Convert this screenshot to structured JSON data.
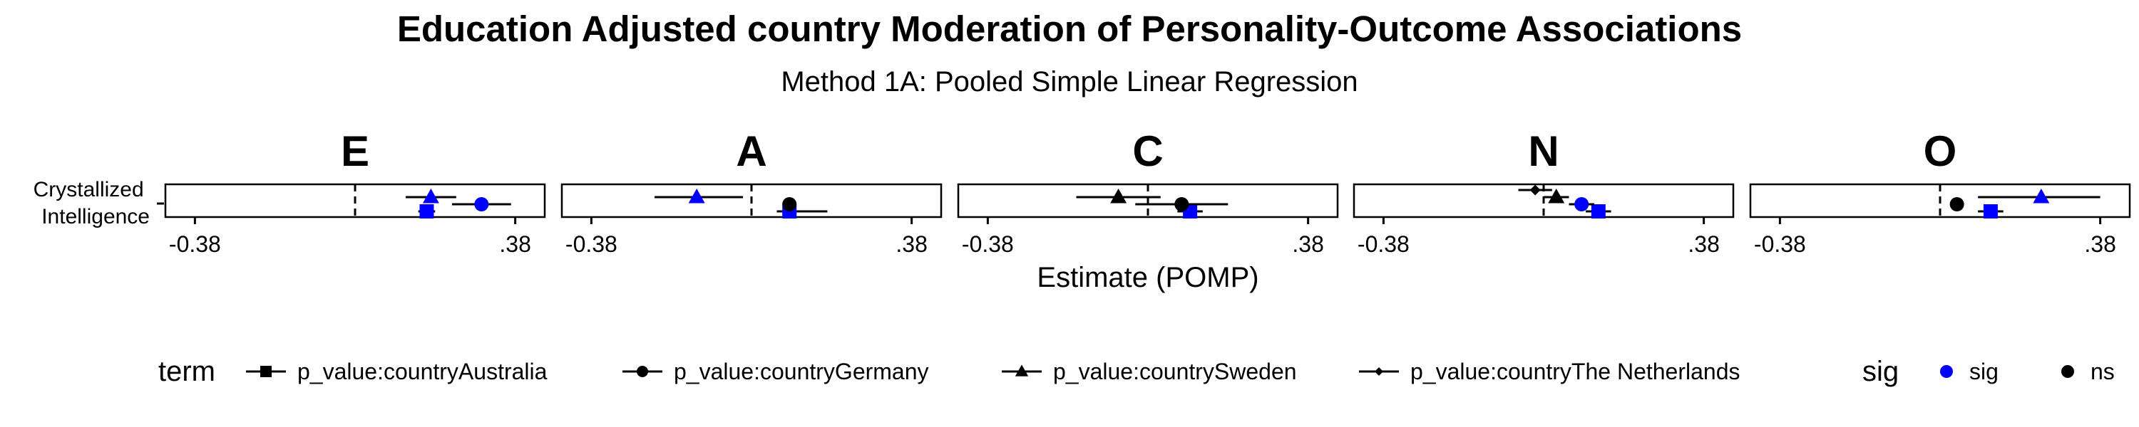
{
  "chart_data": {
    "type": "scatter",
    "title": "Education Adjusted country Moderation of Personality-Outcome Associations",
    "subtitle": "Method 1A: Pooled Simple Linear Regression",
    "xlabel": "Estimate (POMP)",
    "ylabel": "",
    "y_category": "Crystallized\nIntelligence",
    "y_category_lines": [
      "Crystallized",
      "Intelligence"
    ],
    "x_ticks": [
      {
        "value": -0.38,
        "label": "-0.38"
      },
      {
        "value": 0.38,
        "label": ".38"
      }
    ],
    "xlim": [
      -0.45,
      0.45
    ],
    "facets": [
      {
        "label": "E",
        "points": [
          {
            "term": "p_value:countryAustralia",
            "sig": "sig",
            "estimate": 0.17,
            "ci": [
              0.15,
              0.19
            ]
          },
          {
            "term": "p_value:countryGermany",
            "sig": "sig",
            "estimate": 0.3,
            "ci": [
              0.23,
              0.37
            ]
          },
          {
            "term": "p_value:countrySweden",
            "sig": "sig",
            "estimate": 0.18,
            "ci": [
              0.12,
              0.24
            ]
          }
        ]
      },
      {
        "label": "A",
        "points": [
          {
            "term": "p_value:countryAustralia",
            "sig": "sig",
            "estimate": 0.09,
            "ci": [
              0.06,
              0.18
            ]
          },
          {
            "term": "p_value:countryGermany",
            "sig": "ns",
            "estimate": 0.09,
            "ci": [
              0.09,
              0.09
            ]
          },
          {
            "term": "p_value:countrySweden",
            "sig": "sig",
            "estimate": -0.13,
            "ci": [
              -0.23,
              -0.02
            ]
          }
        ]
      },
      {
        "label": "C",
        "points": [
          {
            "term": "p_value:countryAustralia",
            "sig": "sig",
            "estimate": 0.1,
            "ci": [
              0.07,
              0.13
            ]
          },
          {
            "term": "p_value:countryGermany",
            "sig": "ns",
            "estimate": 0.08,
            "ci": [
              -0.03,
              0.19
            ]
          },
          {
            "term": "p_value:countrySweden",
            "sig": "ns",
            "estimate": -0.07,
            "ci": [
              -0.17,
              0.03
            ]
          }
        ]
      },
      {
        "label": "N",
        "points": [
          {
            "term": "p_value:countryAustralia",
            "sig": "sig",
            "estimate": 0.13,
            "ci": [
              0.1,
              0.16
            ]
          },
          {
            "term": "p_value:countryGermany",
            "sig": "sig",
            "estimate": 0.09,
            "ci": [
              0.06,
              0.12
            ]
          },
          {
            "term": "p_value:countrySweden",
            "sig": "ns",
            "estimate": 0.03,
            "ci": [
              0.0,
              0.06
            ]
          },
          {
            "term": "p_value:countryThe Netherlands",
            "sig": "ns",
            "estimate": -0.02,
            "ci": [
              -0.06,
              0.02
            ]
          }
        ]
      },
      {
        "label": "O",
        "points": [
          {
            "term": "p_value:countryAustralia",
            "sig": "sig",
            "estimate": 0.12,
            "ci": [
              0.09,
              0.15
            ]
          },
          {
            "term": "p_value:countryGermany",
            "sig": "ns",
            "estimate": 0.04,
            "ci": [
              0.04,
              0.04
            ]
          },
          {
            "term": "p_value:countrySweden",
            "sig": "sig",
            "estimate": 0.24,
            "ci": [
              0.09,
              0.38
            ]
          }
        ]
      }
    ],
    "legend": {
      "position": "bottom",
      "term_title": "term",
      "terms": [
        {
          "name": "p_value:countryAustralia",
          "shape": "square"
        },
        {
          "name": "p_value:countryGermany",
          "shape": "circle"
        },
        {
          "name": "p_value:countrySweden",
          "shape": "triangle"
        },
        {
          "name": "p_value:countryThe Netherlands",
          "shape": "diamond"
        }
      ],
      "sig_title": "sig",
      "sig": [
        {
          "name": "sig",
          "color": "#0000FF"
        },
        {
          "name": "ns",
          "color": "#000000"
        }
      ]
    },
    "grid": false,
    "reference_line": 0
  }
}
